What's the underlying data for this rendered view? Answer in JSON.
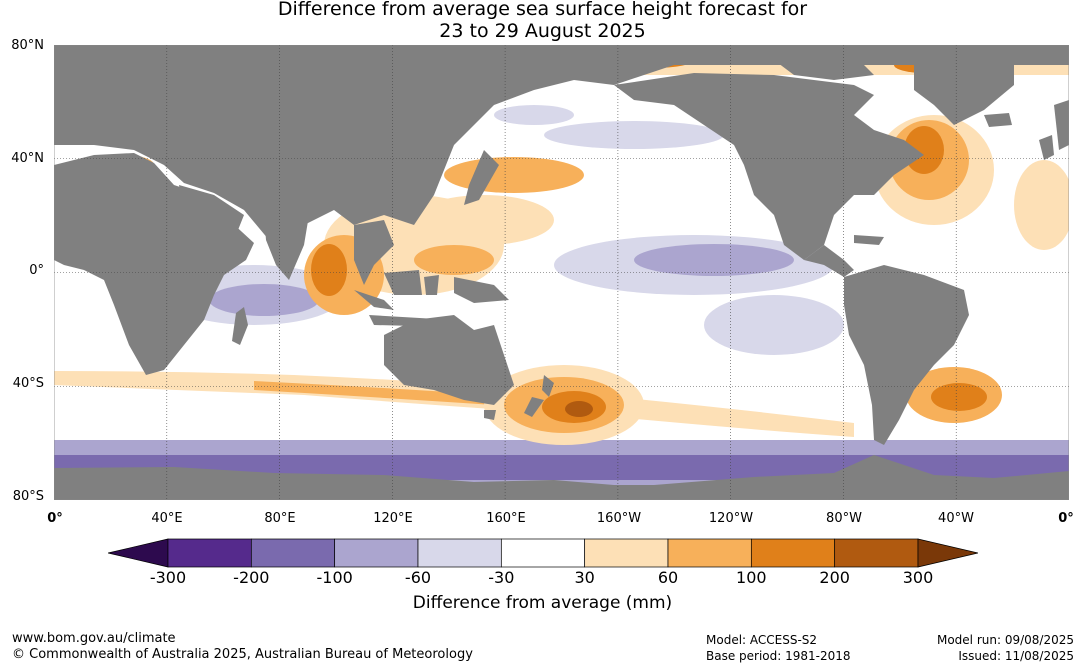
{
  "title": {
    "line1": "Difference from average sea surface height forecast for",
    "line2": "23 to 29 August 2025"
  },
  "map": {
    "lat_labels": [
      "80°N",
      "40°N",
      "0°",
      "40°S",
      "80°S"
    ],
    "lon_labels": [
      "0°",
      "40°E",
      "80°E",
      "120°E",
      "160°E",
      "160°W",
      "120°W",
      "80°W",
      "40°W",
      "0°"
    ],
    "land_color": "#808080",
    "grid_color": "#444444"
  },
  "colorbar": {
    "ticks": [
      "-300",
      "-200",
      "-100",
      "-60",
      "-30",
      "30",
      "60",
      "100",
      "200",
      "300"
    ],
    "colors": [
      "#2d0a4e",
      "#552a8c",
      "#7a6aae",
      "#aba5cf",
      "#d8d8ea",
      "#ffffff",
      "#fde0b6",
      "#f7b05a",
      "#e0801a",
      "#b05a10",
      "#7a3808"
    ],
    "label": "Difference from average (mm)"
  },
  "footer": {
    "website": "www.bom.gov.au/climate",
    "copyright": "© Commonwealth of Australia 2025, Australian Bureau of Meteorology",
    "model": "Model: ACCESS-S2",
    "base_period": "Base period: 1981-2018",
    "model_run": "Model run: 09/08/2025",
    "issued": "Issued: 11/08/2025"
  }
}
